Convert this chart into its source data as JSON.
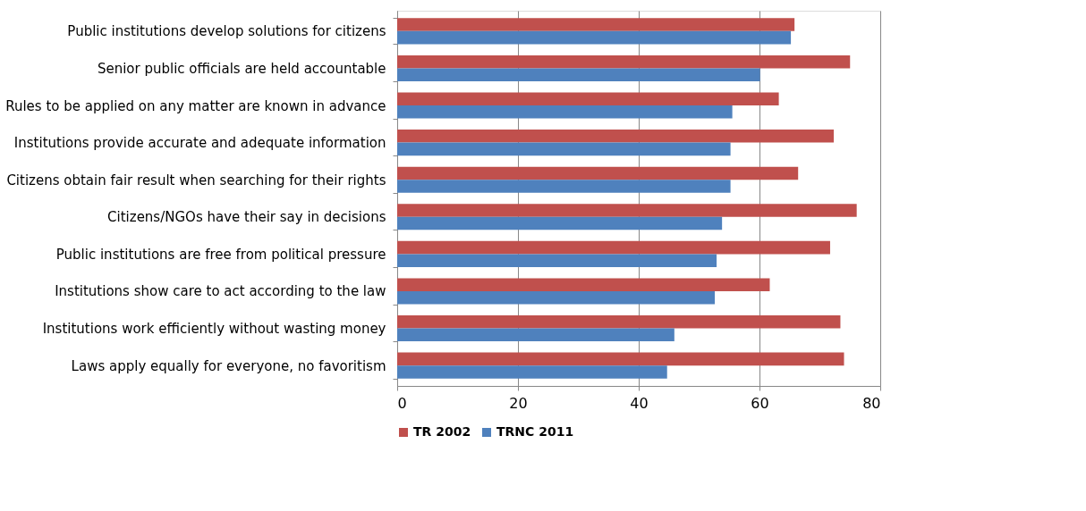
{
  "chart_data": {
    "type": "bar",
    "orientation": "horizontal",
    "categories": [
      "Public institutions develop solutions for citizens",
      "Senior public officials are held accountable",
      "Rules to be applied on any matter are known in advance",
      "Institutions provide accurate and adequate information",
      "Citizens obtain fair result when searching for their rights",
      "Citizens/NGOs have their say in decisions",
      "Public institutions are free from political pressure",
      "Institutions show care to act according to the law",
      "Institutions work efficiently without wasting money",
      "Laws apply equally for everyone, no favoritism"
    ],
    "series": [
      {
        "name": "TR 2002",
        "color": "#c0504d",
        "values": [
          65.8,
          75.0,
          63.2,
          72.3,
          66.4,
          76.1,
          71.7,
          61.7,
          73.4,
          74.0
        ]
      },
      {
        "name": "TRNC 2011",
        "color": "#4f81bd",
        "values": [
          65.2,
          60.1,
          55.5,
          55.2,
          55.2,
          53.8,
          52.9,
          52.6,
          45.9,
          44.7
        ]
      }
    ],
    "xlim": [
      0,
      80
    ],
    "xticks": [
      0,
      20,
      40,
      60,
      80
    ],
    "grid": "x",
    "legend": "bottom"
  }
}
